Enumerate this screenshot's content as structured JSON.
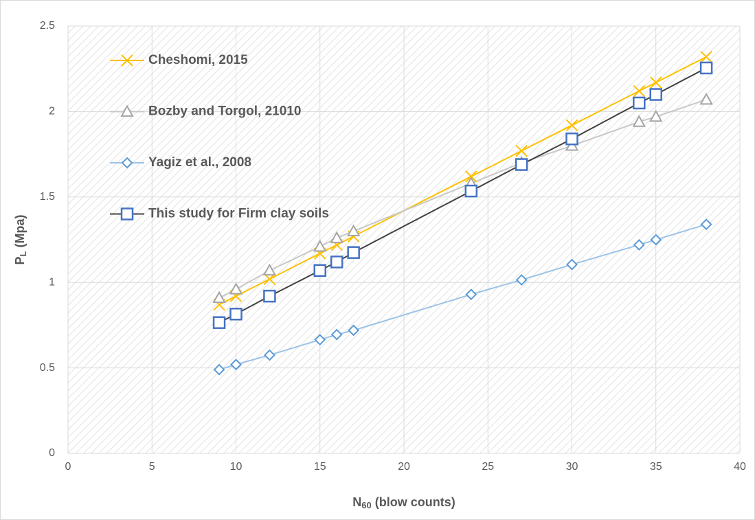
{
  "chart_data": {
    "type": "line",
    "xlabel": [
      "N",
      "60",
      " (blow counts)"
    ],
    "ylabel": [
      "P",
      "L",
      " (Mpa)"
    ],
    "x": [
      9,
      10,
      12,
      15,
      16,
      17,
      24,
      27,
      30,
      34,
      35,
      38
    ],
    "series": [
      {
        "name": "Cheshomi, 2015",
        "color": "#ffc000",
        "marker_color": "#ffc000",
        "marker": "x",
        "values": [
          0.87,
          0.92,
          1.02,
          1.17,
          1.22,
          1.27,
          1.62,
          1.77,
          1.92,
          2.12,
          2.17,
          2.32
        ]
      },
      {
        "name": "Bozby and Torgol, 21010",
        "color": "#c8c8c8",
        "marker_color": "#a5a5a5",
        "marker": "triangle",
        "values": [
          0.91,
          0.96,
          1.07,
          1.21,
          1.26,
          1.3,
          1.58,
          1.7,
          1.8,
          1.94,
          1.97,
          2.07
        ]
      },
      {
        "name": "Yagiz et al., 2008",
        "color": "#9dc3e6",
        "marker_color": "#5b9bd5",
        "marker": "diamond",
        "values": [
          0.49,
          0.52,
          0.575,
          0.665,
          0.695,
          0.72,
          0.93,
          1.015,
          1.105,
          1.22,
          1.25,
          1.34
        ]
      },
      {
        "name": "This study for Firm clay soils",
        "color": "#404040",
        "marker_color": "#4472c4",
        "marker": "square",
        "values": [
          0.765,
          0.815,
          0.92,
          1.07,
          1.12,
          1.175,
          1.535,
          1.69,
          1.84,
          2.05,
          2.1,
          2.255
        ]
      }
    ],
    "xlim": [
      0,
      40
    ],
    "xticks": [
      0,
      5,
      10,
      15,
      20,
      25,
      30,
      35,
      40
    ],
    "ylim": [
      0,
      2.5
    ],
    "yticks": [
      0,
      0.5,
      1,
      1.5,
      2,
      2.5
    ],
    "grid": true,
    "legend": "upper left"
  }
}
